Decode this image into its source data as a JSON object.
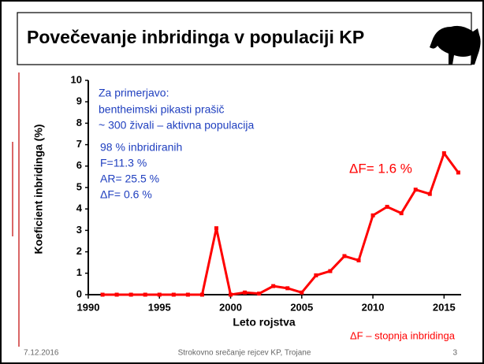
{
  "slide": {
    "title": "Povečevanje inbridinga v populaciji KP",
    "footer_date": "7.12.2016",
    "footer_text": "Strokovno srečanje rejcev KP, Trojane",
    "page_number": "3"
  },
  "chart_data": {
    "type": "line",
    "x_label": "Leto rojstva",
    "y_label": "Koeficient inbridinga (%)",
    "x": [
      1991,
      1992,
      1993,
      1994,
      1995,
      1996,
      1997,
      1998,
      1999,
      2000,
      2001,
      2002,
      2003,
      2004,
      2005,
      2006,
      2007,
      2008,
      2009,
      2010,
      2011,
      2012,
      2013,
      2014,
      2015,
      2016
    ],
    "series": [
      {
        "color": "#ff0000",
        "values": [
          0,
          0,
          0,
          0,
          0,
          0,
          0,
          0,
          3.1,
          0,
          0.1,
          0.05,
          0.4,
          0.3,
          0.1,
          0.9,
          1.1,
          1.8,
          1.6,
          3.7,
          4.1,
          3.8,
          4.9,
          4.7,
          6.6,
          5.7
        ]
      }
    ],
    "xlim": [
      1990,
      2016.2
    ],
    "xticks": [
      1990,
      1995,
      2000,
      2005,
      2010,
      2015
    ],
    "ylim": [
      0,
      10
    ],
    "yticks": [
      0,
      1,
      2,
      3,
      4,
      5,
      6,
      7,
      8,
      9,
      10
    ],
    "annotations": [
      {
        "text": "Za primerjavo:",
        "color": "#1f3fbf"
      },
      {
        "text": "bentheimski pikasti prašič",
        "color": "#1f3fbf"
      },
      {
        "text": "~ 300 živali – aktivna populacija",
        "color": "#1f3fbf"
      },
      {
        "text": "98 % inbridiranih",
        "color": "#1f3fbf"
      },
      {
        "text": "F=11.3 %",
        "color": "#1f3fbf"
      },
      {
        "text": "AR= 25.5 %",
        "color": "#1f3fbf"
      },
      {
        "text": "ΔF= 0.6 %",
        "color": "#1f3fbf"
      },
      {
        "text": "ΔF= 1.6 %",
        "color": "#ff0000"
      },
      {
        "text": "ΔF – stopnja inbridinga",
        "color": "#ff0000"
      }
    ]
  }
}
